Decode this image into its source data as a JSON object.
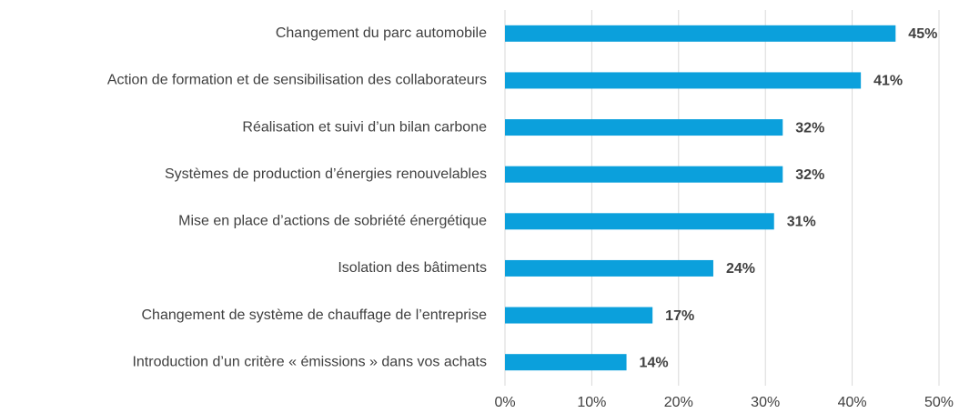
{
  "chart_data": {
    "type": "bar",
    "orientation": "horizontal",
    "categories": [
      "Changement du parc automobile",
      "Action de formation et de sensibilisation des collaborateurs",
      "Réalisation et suivi d’un bilan carbone",
      "Systèmes de production d’énergies renouvelables",
      "Mise en place d’actions de sobriété énergétique",
      "Isolation des bâtiments",
      "Changement de système de chauffage de l’entreprise",
      "Introduction d’un critère « émissions » dans vos achats"
    ],
    "values": [
      45,
      41,
      32,
      32,
      31,
      24,
      17,
      14
    ],
    "value_labels": [
      "45%",
      "41%",
      "32%",
      "32%",
      "31%",
      "24%",
      "17%",
      "14%"
    ],
    "color": "#0ba0dc",
    "xlim": [
      0,
      50
    ],
    "xticks": [
      {
        "value": 0,
        "label": "0%"
      },
      {
        "value": 10,
        "label": "10%"
      },
      {
        "value": 20,
        "label": "20%"
      },
      {
        "value": 30,
        "label": "30%"
      },
      {
        "value": 40,
        "label": "40%"
      },
      {
        "value": 50,
        "label": "50%"
      }
    ],
    "grid": true
  }
}
